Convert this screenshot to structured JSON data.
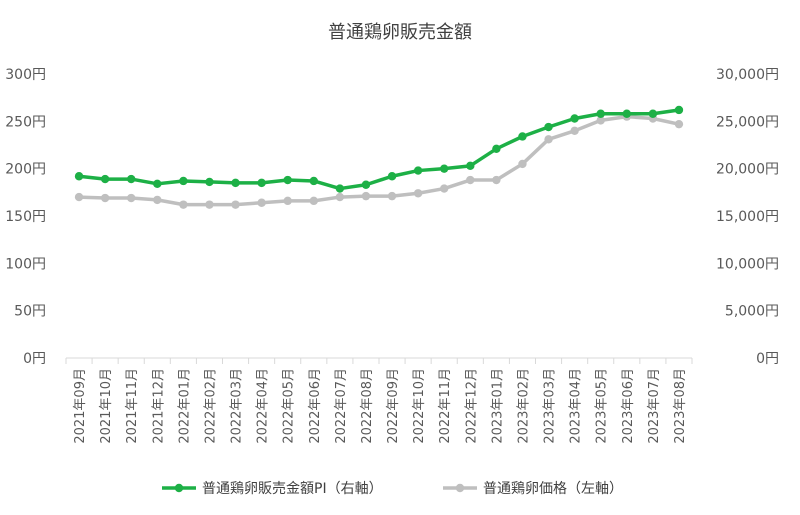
{
  "chart_data": {
    "type": "line",
    "title": "普通鶏卵販売金額",
    "categories": [
      "2021年09月",
      "2021年10月",
      "2021年11月",
      "2021年12月",
      "2022年01月",
      "2022年02月",
      "2022年03月",
      "2022年04月",
      "2022年05月",
      "2022年06月",
      "2022年07月",
      "2022年08月",
      "2022年09月",
      "2022年10月",
      "2022年11月",
      "2022年12月",
      "2023年01月",
      "2023年02月",
      "2023年03月",
      "2023年04月",
      "2023年05月",
      "2023年06月",
      "2023年07月",
      "2023年08月"
    ],
    "left_axis": {
      "min": 0,
      "max": 300,
      "step": 50,
      "tick_labels": [
        "0円",
        "50円",
        "100円",
        "150円",
        "200円",
        "250円",
        "300円"
      ]
    },
    "right_axis": {
      "min": 0,
      "max": 30000,
      "step": 5000,
      "tick_labels": [
        "0円",
        "5,000円",
        "10,000円",
        "15,000円",
        "20,000円",
        "25,000円",
        "30,000円"
      ]
    },
    "series": [
      {
        "name": "普通鶏卵販売金額PI（右軸）",
        "axis": "right",
        "color": "#1db046",
        "values": [
          19200,
          18900,
          18900,
          18400,
          18700,
          18600,
          18500,
          18500,
          18800,
          18700,
          17900,
          18300,
          19200,
          19800,
          20000,
          20300,
          22100,
          23400,
          24400,
          25300,
          25800,
          25800,
          25800,
          26200
        ]
      },
      {
        "name": "普通鶏卵価格（左軸）",
        "axis": "left",
        "color": "#bfbfbf",
        "values": [
          170,
          169,
          169,
          167,
          162,
          162,
          162,
          164,
          166,
          166,
          170,
          171,
          171,
          174,
          179,
          188,
          188,
          205,
          231,
          240,
          251,
          255,
          253,
          247
        ]
      }
    ],
    "grid": false,
    "legend_position": "bottom"
  }
}
